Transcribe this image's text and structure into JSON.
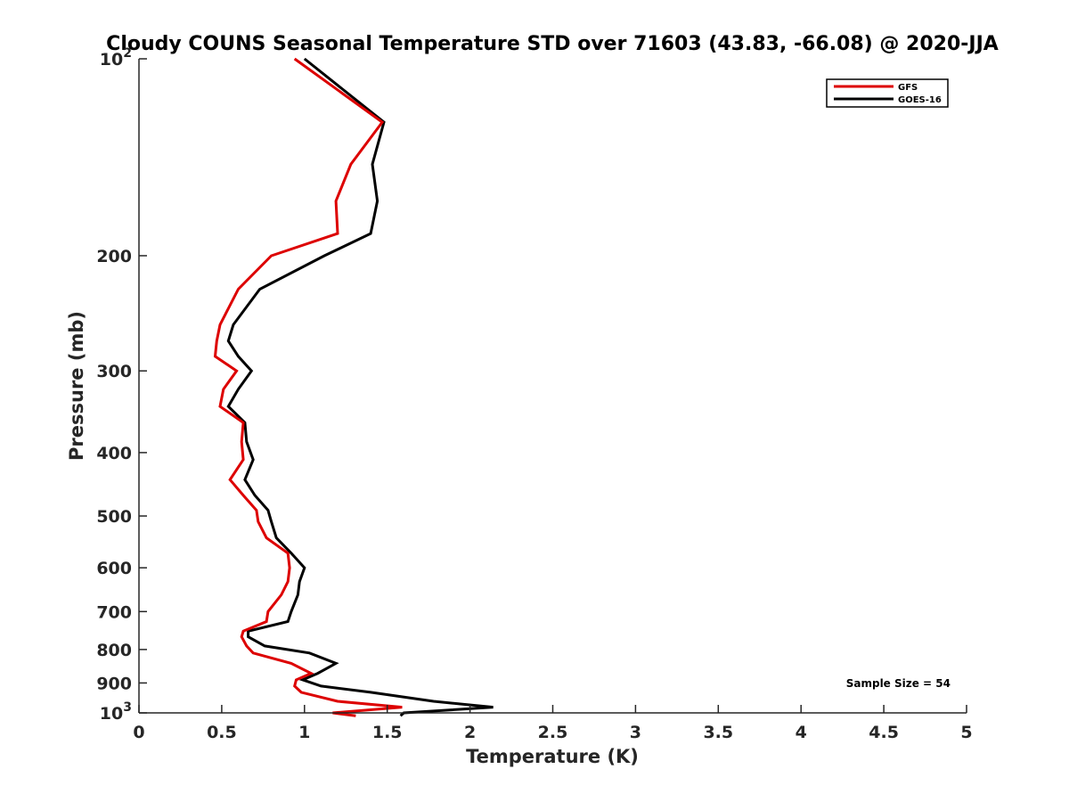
{
  "chart_data": {
    "type": "line",
    "title": "Cloudy COUNS Seasonal Temperature STD over 71603 (43.83, -66.08) @ 2020-JJA",
    "xlabel": "Temperature (K)",
    "ylabel": "Pressure (mb)",
    "xlim": [
      0,
      5
    ],
    "ylim": [
      100,
      1000
    ],
    "yscale": "log",
    "y_reversed": true,
    "grid": false,
    "x_ticks": [
      0,
      0.5,
      1,
      1.5,
      2,
      2.5,
      3,
      3.5,
      4,
      4.5,
      5
    ],
    "x_tick_labels": [
      "0",
      "0.5",
      "1",
      "1.5",
      "2",
      "2.5",
      "3",
      "3.5",
      "4",
      "4.5",
      "5"
    ],
    "y_ticks": [
      100,
      200,
      300,
      400,
      500,
      600,
      700,
      800,
      900,
      1000
    ],
    "y_tick_labels": [
      {
        "base": "10",
        "sup": "2"
      },
      {
        "base": "200",
        "sup": ""
      },
      {
        "base": "300",
        "sup": ""
      },
      {
        "base": "400",
        "sup": ""
      },
      {
        "base": "500",
        "sup": ""
      },
      {
        "base": "600",
        "sup": ""
      },
      {
        "base": "700",
        "sup": ""
      },
      {
        "base": "800",
        "sup": ""
      },
      {
        "base": "900",
        "sup": ""
      },
      {
        "base": "10",
        "sup": "3"
      }
    ],
    "legend_position": "top-right",
    "annotation": "Sample Size = 54",
    "series": [
      {
        "name": "GFS",
        "color": "#dd0000",
        "x": [
          0.94,
          1.47,
          1.28,
          1.19,
          1.2,
          0.8,
          0.6,
          0.49,
          0.47,
          0.46,
          0.59,
          0.51,
          0.49,
          0.63,
          0.62,
          0.63,
          0.55,
          0.63,
          0.71,
          0.72,
          0.77,
          0.9,
          0.91,
          0.9,
          0.86,
          0.78,
          0.77,
          0.63,
          0.62,
          0.65,
          0.69,
          0.92,
          1.04,
          0.95,
          0.94,
          0.98,
          1.2,
          1.59,
          1.17,
          1.31
        ],
        "y": [
          100,
          125,
          145,
          165,
          185,
          200,
          225,
          255,
          270,
          285,
          300,
          320,
          340,
          360,
          385,
          410,
          440,
          465,
          490,
          510,
          540,
          570,
          600,
          630,
          660,
          700,
          725,
          750,
          765,
          790,
          810,
          840,
          870,
          890,
          910,
          930,
          960,
          980,
          1000,
          1010
        ]
      },
      {
        "name": "GOES-16",
        "color": "#000000",
        "x": [
          1.0,
          1.48,
          1.41,
          1.44,
          1.4,
          1.12,
          0.73,
          0.57,
          0.54,
          0.6,
          0.68,
          0.6,
          0.54,
          0.64,
          0.65,
          0.69,
          0.64,
          0.7,
          0.78,
          0.8,
          0.83,
          0.92,
          1.0,
          0.97,
          0.96,
          0.92,
          0.9,
          0.66,
          0.66,
          0.76,
          1.03,
          1.19,
          1.08,
          0.99,
          1.1,
          1.4,
          1.78,
          2.14,
          1.6,
          1.58
        ],
        "y": [
          100,
          125,
          145,
          165,
          185,
          200,
          225,
          255,
          270,
          285,
          300,
          320,
          340,
          360,
          385,
          410,
          440,
          465,
          490,
          510,
          540,
          570,
          600,
          630,
          660,
          700,
          725,
          750,
          765,
          790,
          810,
          840,
          870,
          890,
          910,
          930,
          960,
          980,
          1000,
          1010
        ]
      }
    ]
  }
}
